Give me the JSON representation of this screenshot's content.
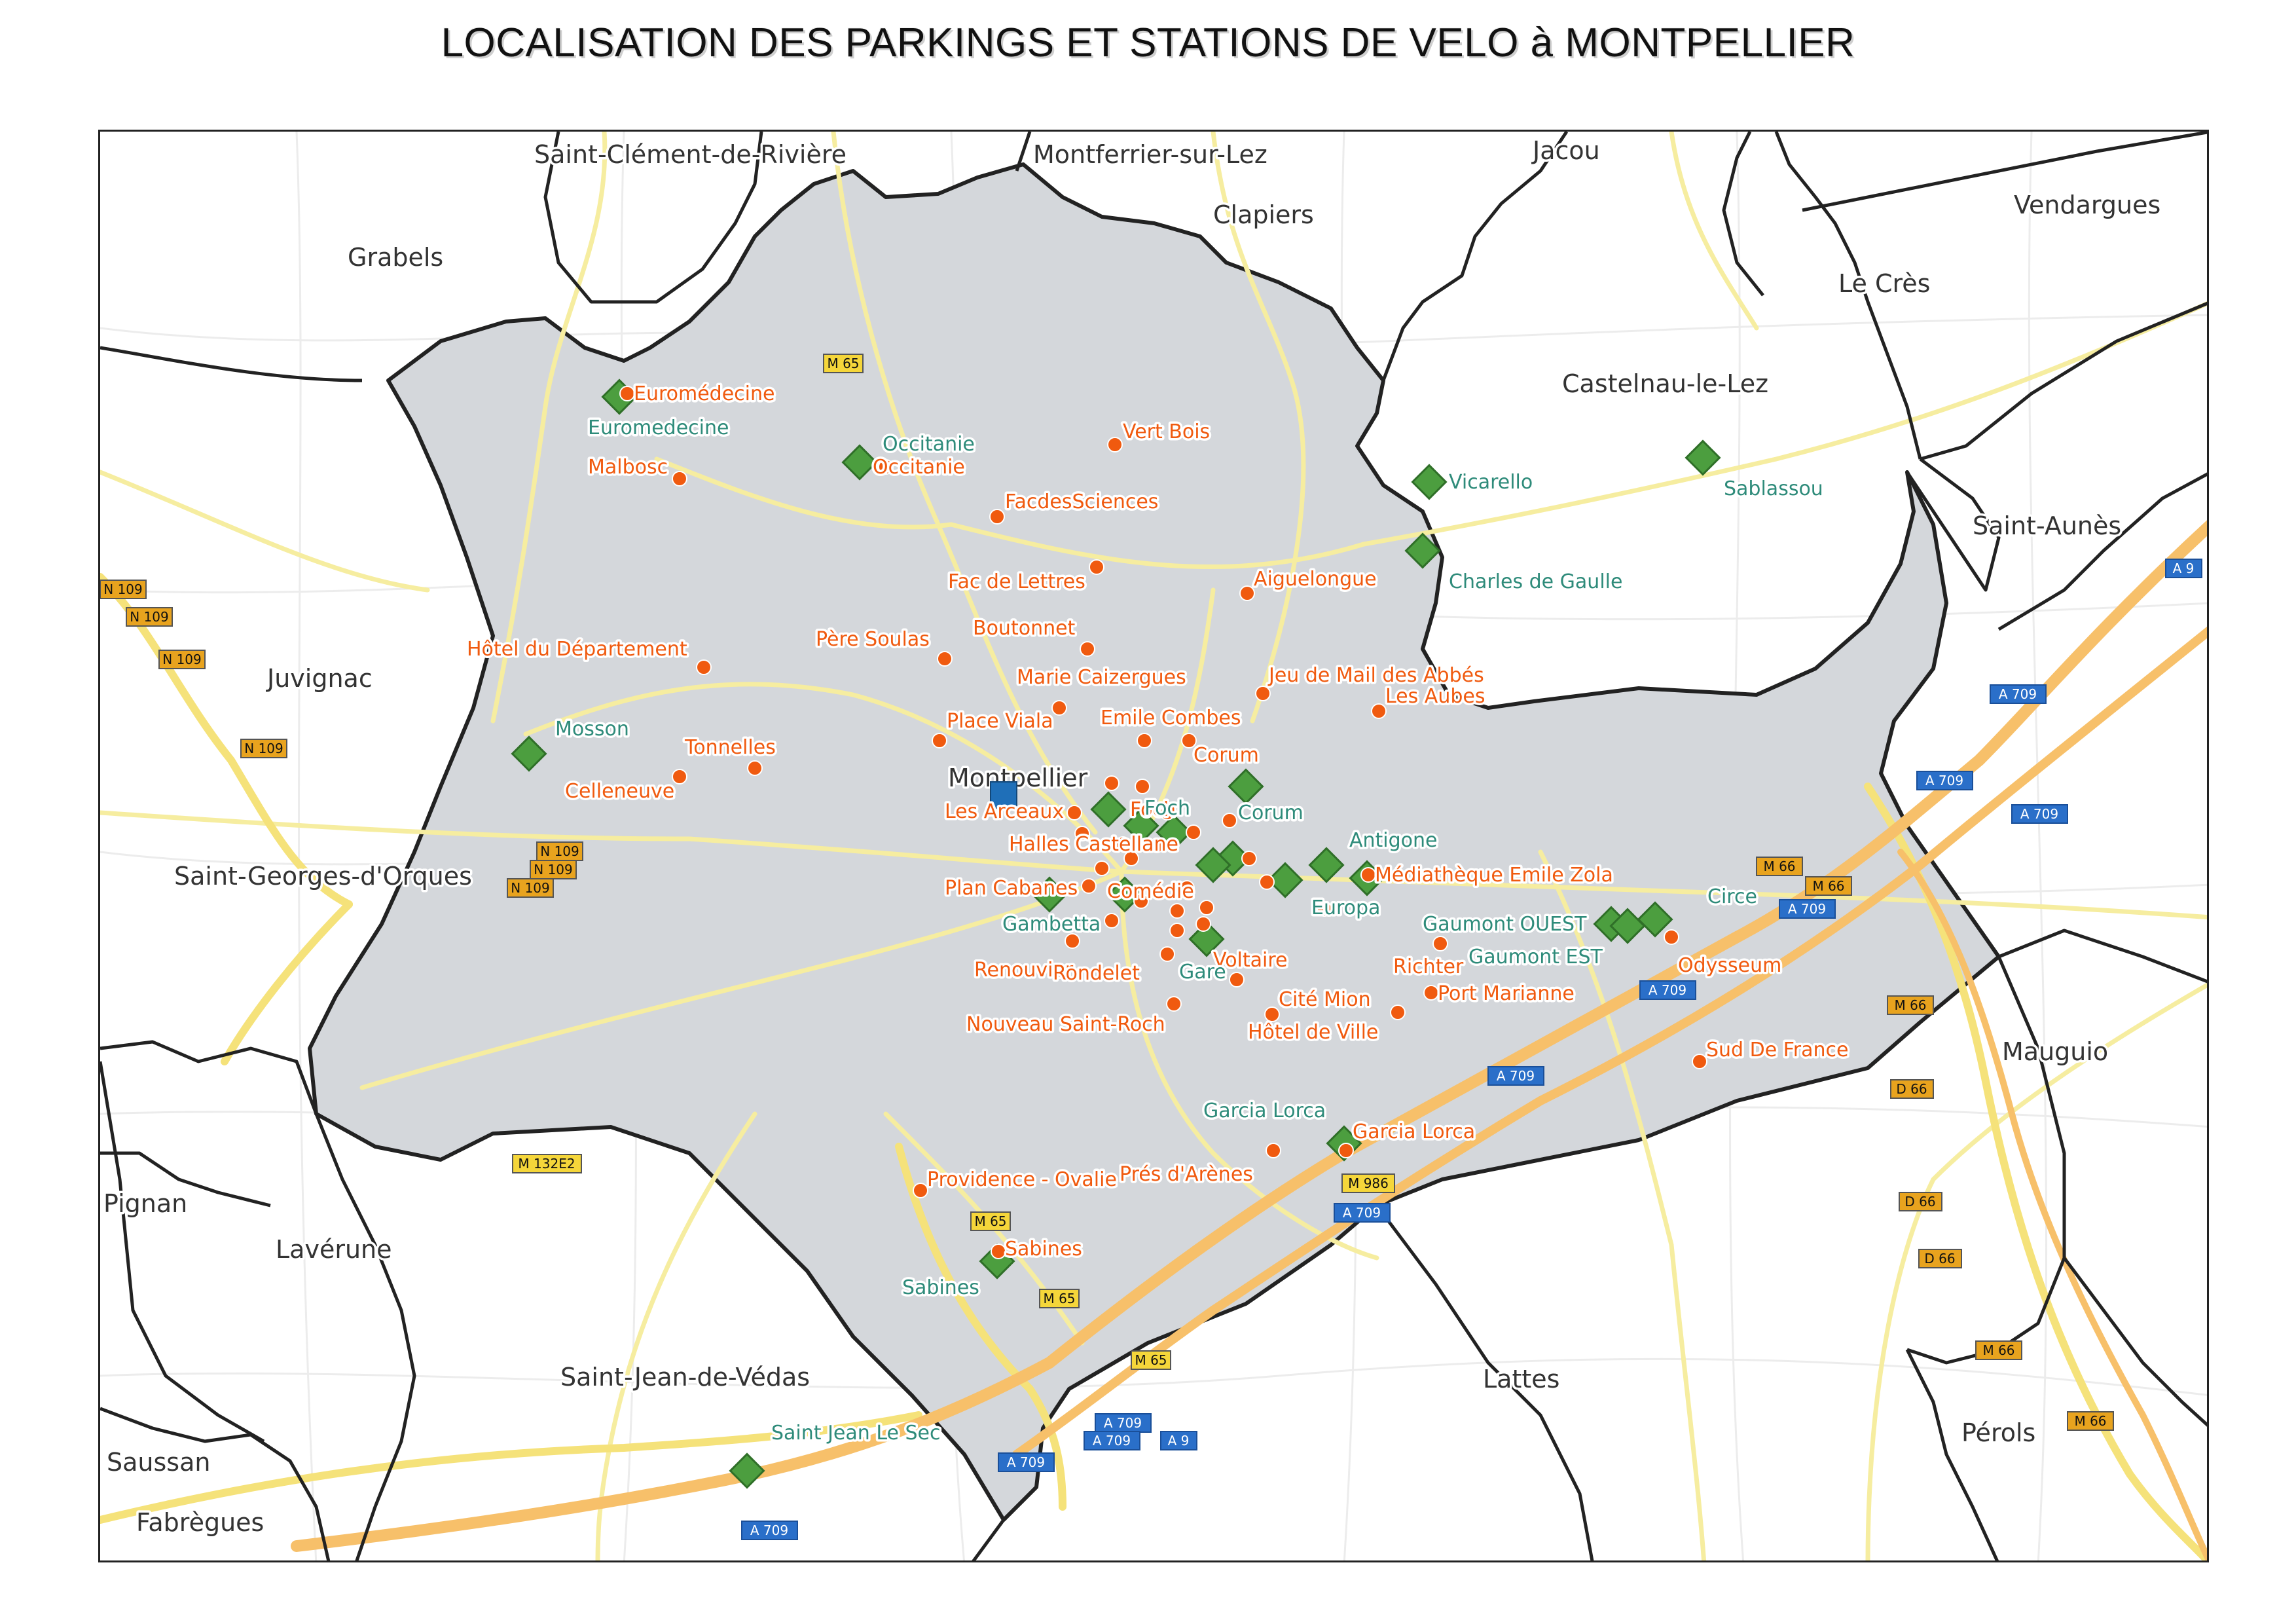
{
  "title": "LOCALISATION DES PARKINGS ET STATIONS DE VELO à MONTPELLIER",
  "colors": {
    "parking": "#f05a0f",
    "velo_station": "#4c9e3f",
    "velo_label": "#2e8b7a",
    "center_marker": "#1f6fb8",
    "city_area": "#d4d7db",
    "boundary": "#222222",
    "road_minor": "#fbf3b0",
    "motorway": "#f7c06a"
  },
  "map": {
    "center_label": "Montpellier",
    "communes": [
      "Saint-Clément-de-Rivière",
      "Montferrier-sur-Lez",
      "Jacou",
      "Clapiers",
      "Vendargues",
      "Grabels",
      "Le Crès",
      "Castelnau-le-Lez",
      "Saint-Aunès",
      "Juvignac",
      "Saint-Georges-d'Orques",
      "Mauguio",
      "Pignan",
      "Lavérune",
      "Saint-Jean-de-Védas",
      "Lattes",
      "Pérols",
      "Saussan",
      "Fabrègues"
    ],
    "parkings": [
      "Euromédecine",
      "Malbosc",
      "Occitanie",
      "Vert Bois",
      "FacdesSciences",
      "Aiguelongue",
      "Fac de Lettres",
      "Boutonnet",
      "Père Soulas",
      "Hôtel du Département",
      "Marie Caizergues",
      "Jeu de Mail des Abbés",
      "Les Aubes",
      "Place Viala",
      "Emile Combes",
      "Corum",
      "Tonnelles",
      "Celleneuve",
      "Les Arceaux",
      "Foch",
      "Halles Castellane",
      "Médiathèque Emile Zola",
      "Plan Cabanes",
      "Comédie",
      "Renouvier",
      "Rondelet",
      "Voltaire",
      "Richter",
      "Nouveau Saint-Roch",
      "Cité Mion",
      "Port Marianne",
      "Hôtel de Ville",
      "Odysseum",
      "Sud De France",
      "Garcia Lorca",
      "Providence - Ovalie",
      "Prés d'Arènes",
      "Sabines"
    ],
    "velo_stations": [
      "Euromedecine",
      "Occitanie",
      "Vicarello",
      "Sablassou",
      "Charles de Gaulle",
      "Mosson",
      "Foch",
      "Corum",
      "Antigone",
      "Europa",
      "Gambetta",
      "Gare",
      "Gaumont OUEST",
      "Gaumont EST",
      "Circe",
      "Garcia Lorca",
      "Sabines",
      "Saint Jean Le Sec"
    ],
    "road_shields": [
      "M 65",
      "N 109",
      "M 132E2",
      "M 986",
      "A 709",
      "A 9",
      "M 66",
      "D 66"
    ]
  }
}
